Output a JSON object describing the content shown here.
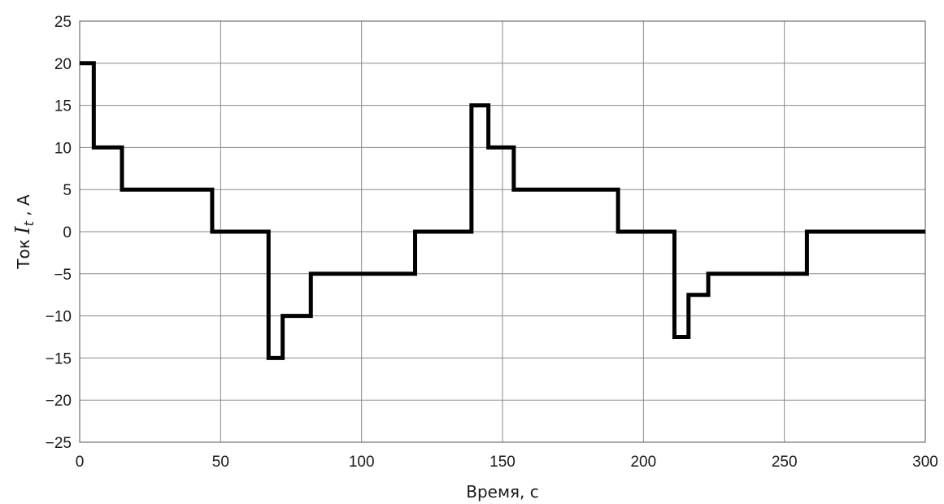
{
  "chart_data": {
    "type": "line",
    "title": "",
    "xlabel": "Время, с",
    "ylabel": {
      "prefix": "Ток ",
      "symbol": "I",
      "subscript": "t",
      "suffix": " , А"
    },
    "xlim": [
      0,
      300
    ],
    "ylim": [
      -25,
      25
    ],
    "xticks": [
      0,
      50,
      100,
      150,
      200,
      250,
      300
    ],
    "yticks": [
      25,
      20,
      15,
      10,
      5,
      0,
      -5,
      -10,
      -15,
      -20,
      -25
    ],
    "xtick_labels": [
      "0",
      "50",
      "100",
      "150",
      "200",
      "250",
      "300"
    ],
    "ytick_labels": [
      "25",
      "20",
      "15",
      "10",
      "5",
      "0",
      "−5",
      "−10",
      "−15",
      "−20",
      "−25"
    ],
    "grid": true,
    "series": [
      {
        "step": "post",
        "color": "#000000",
        "x": [
          0,
          5,
          15,
          47,
          67,
          72,
          82,
          119,
          139,
          145,
          154,
          191,
          211,
          216,
          223,
          258,
          300
        ],
        "y": [
          20,
          10,
          5,
          0,
          -15,
          -10,
          -5,
          0,
          15,
          10,
          5,
          0,
          -12.5,
          -7.5,
          -5,
          0,
          0
        ]
      }
    ]
  }
}
